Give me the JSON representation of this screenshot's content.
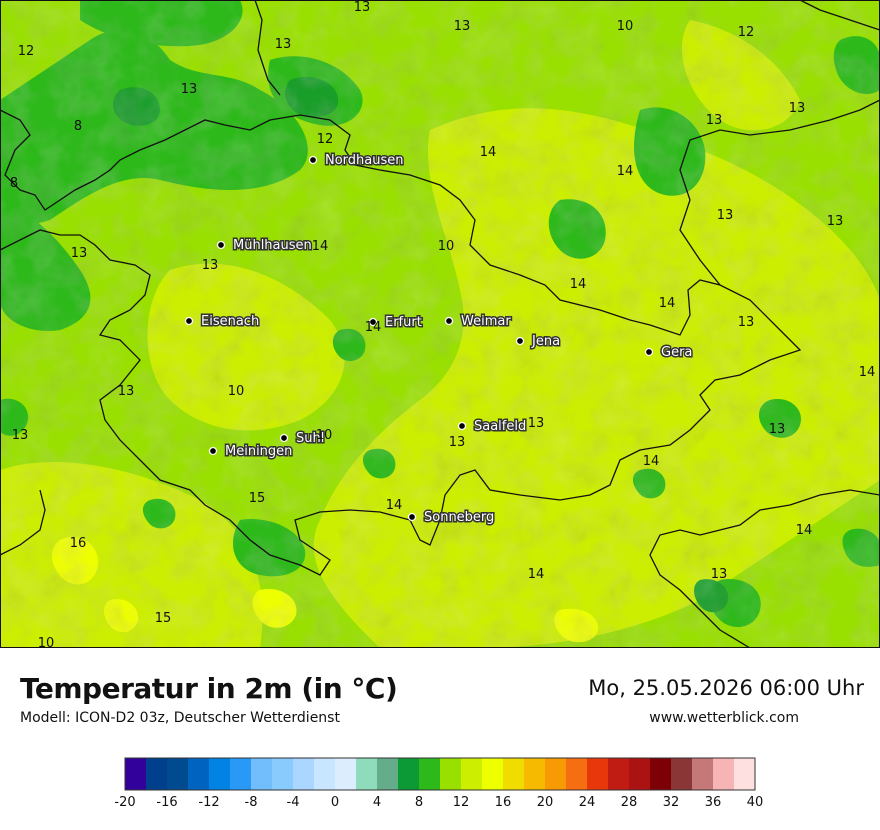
{
  "title": "Temperatur in 2m (in °C)",
  "subtitle": "Modell: ICON-D2 03z, Deutscher Wetterdienst",
  "datetime": "Mo, 25.05.2026 06:00 Uhr",
  "site": "www.wetterblick.com",
  "colors": {
    "temp_10": "#2db91a",
    "temp_12": "#99e000",
    "temp_14": "#ccee00",
    "temp_16": "#eeff00",
    "border": "#111111"
  },
  "cities": [
    {
      "name": "Nordhausen"
    },
    {
      "name": "Mühlhausen"
    },
    {
      "name": "Eisenach"
    },
    {
      "name": "Erfurt"
    },
    {
      "name": "Weimar"
    },
    {
      "name": "Jena"
    },
    {
      "name": "Gera"
    },
    {
      "name": "Suhl"
    },
    {
      "name": "Meiningen"
    },
    {
      "name": "Saalfeld"
    },
    {
      "name": "Sonneberg"
    }
  ],
  "values": [
    "13",
    "13",
    "10",
    "12",
    "12",
    "13",
    "13",
    "8",
    "13",
    "12",
    "13",
    "8",
    "14",
    "14",
    "13",
    "13",
    "10",
    "14",
    "13",
    "13",
    "14",
    "14",
    "14",
    "13",
    "14",
    "13",
    "10",
    "13",
    "13",
    "13",
    "10",
    "13",
    "14",
    "15",
    "14",
    "16",
    "14",
    "13",
    "15",
    "14",
    "10"
  ],
  "colorbar": {
    "colors": [
      "#32009a",
      "#003f8c",
      "#004a8f",
      "#0063bf",
      "#0083e3",
      "#2899f5",
      "#72bdfc",
      "#8acbfe",
      "#aad6ff",
      "#c8e6ff",
      "#dcedfe",
      "#8fdcbc",
      "#64ac8a",
      "#0c9a37",
      "#2db91a",
      "#99e000",
      "#ccee00",
      "#eeff00",
      "#f0dd00",
      "#f6bb00",
      "#f79a04",
      "#f56e12",
      "#e8380b",
      "#c01c14",
      "#aa1311",
      "#7e0007",
      "#8b3636",
      "#c47878",
      "#f7b4b4",
      "#ffe0e0"
    ],
    "ticks": [
      "-20",
      "-16",
      "-12",
      "-8",
      "-4",
      "0",
      "4",
      "8",
      "12",
      "16",
      "20",
      "24",
      "28",
      "32",
      "36",
      "40"
    ]
  }
}
